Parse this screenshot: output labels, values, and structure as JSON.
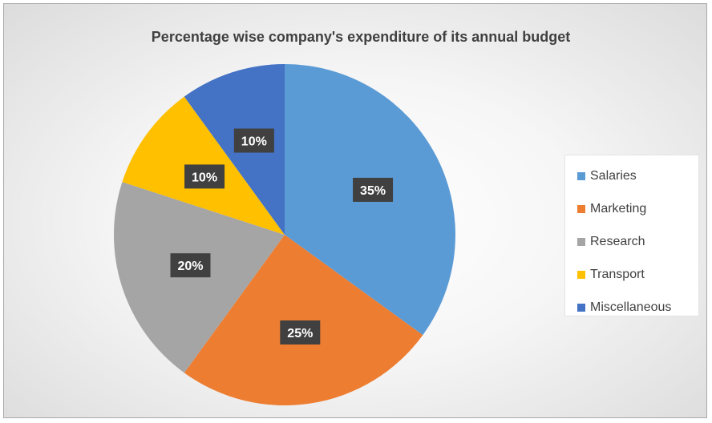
{
  "chart_data": {
    "type": "pie",
    "title": "Percentage wise company's  expenditure of its annual budget",
    "categories": [
      "Salaries",
      "Marketing",
      "Research",
      "Transport",
      "Miscellaneous"
    ],
    "values": [
      35,
      25,
      20,
      10,
      10
    ],
    "data_labels": [
      "35%",
      "25%",
      "20%",
      "10%",
      "10%"
    ],
    "colors": [
      "#5b9bd5",
      "#ed7d31",
      "#a5a5a5",
      "#ffc000",
      "#4472c4"
    ],
    "legend_position": "right",
    "start_angle": "12 o'clock, clockwise"
  }
}
